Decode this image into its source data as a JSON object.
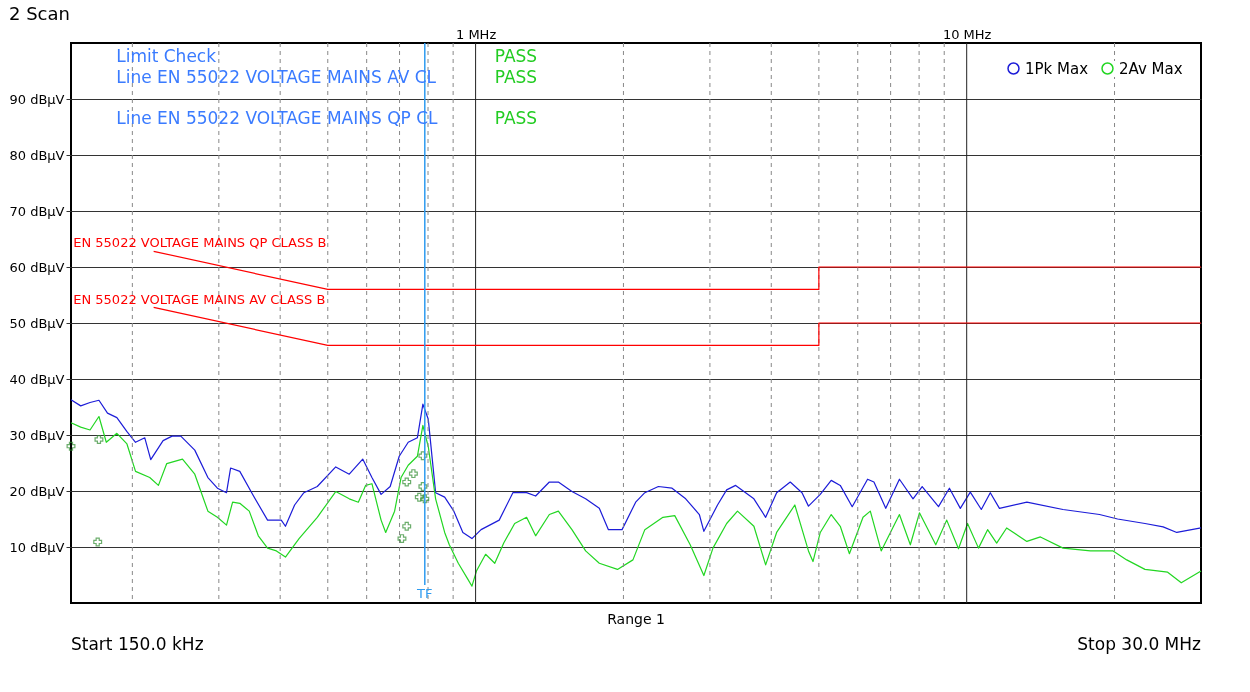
{
  "chart_data": {
    "type": "line",
    "title": "2 Scan",
    "xlim": [
      0.15,
      30
    ],
    "ylim": [
      0,
      100
    ],
    "log": "x",
    "grid": true,
    "legend": "top right",
    "line_style": "solid",
    "xticks": [
      {
        "value": 0.2,
        "label": null
      },
      {
        "value": 0.3,
        "label": null
      },
      {
        "value": 0.4,
        "label": null
      },
      {
        "value": 0.5,
        "label": null
      },
      {
        "value": 0.6,
        "label": null
      },
      {
        "value": 0.7,
        "label": null
      },
      {
        "value": 0.8,
        "label": null
      },
      {
        "value": 0.9,
        "label": null
      },
      {
        "value": 1,
        "label": "1 MHz"
      },
      {
        "value": 2,
        "label": null
      },
      {
        "value": 3,
        "label": null
      },
      {
        "value": 4,
        "label": null
      },
      {
        "value": 5,
        "label": null
      },
      {
        "value": 6,
        "label": null
      },
      {
        "value": 7,
        "label": null
      },
      {
        "value": 8,
        "label": null
      },
      {
        "value": 9,
        "label": null
      },
      {
        "value": 10,
        "label": "10 MHz"
      },
      {
        "value": 20,
        "label": null
      }
    ],
    "yticks": [
      {
        "value": 10,
        "label": "10 dBµV"
      },
      {
        "value": 20,
        "label": "20 dBµV"
      },
      {
        "value": 30,
        "label": "30 dBµV"
      },
      {
        "value": 40,
        "label": "40 dBµV"
      },
      {
        "value": 50,
        "label": "50 dBµV"
      },
      {
        "value": 60,
        "label": "60 dBµV"
      },
      {
        "value": 70,
        "label": "70 dBµV"
      },
      {
        "value": 80,
        "label": "80 dBµV"
      },
      {
        "value": 90,
        "label": "90 dBµV"
      }
    ],
    "series": [
      {
        "name": "1Pk Max",
        "color": "#1c1cd8",
        "x": [
          0.15,
          0.157,
          0.164,
          0.171,
          0.178,
          0.186,
          0.195,
          0.203,
          0.212,
          0.218,
          0.231,
          0.241,
          0.251,
          0.268,
          0.285,
          0.298,
          0.311,
          0.317,
          0.331,
          0.353,
          0.377,
          0.402,
          0.41,
          0.428,
          0.447,
          0.476,
          0.519,
          0.553,
          0.589,
          0.615,
          0.642,
          0.67,
          0.699,
          0.729,
          0.761,
          0.781,
          0.801,
          0.829,
          0.865,
          0.903,
          0.942,
          0.983,
          1.026,
          1.117,
          1.191,
          1.27,
          1.325,
          1.413,
          1.474,
          1.571,
          1.675,
          1.786,
          1.864,
          1.987,
          2.118,
          2.211,
          2.356,
          2.512,
          2.678,
          2.855,
          2.916,
          3.109,
          3.245,
          3.385,
          3.687,
          3.896,
          4.102,
          4.372,
          4.62,
          4.762,
          5.033,
          5.298,
          5.528,
          5.846,
          6.283,
          6.473,
          6.842,
          7.295,
          7.776,
          8.116,
          8.762,
          9.222,
          9.706,
          10.17,
          10.71,
          11.17,
          11.66,
          13.26,
          15.71,
          18.64,
          20.29,
          23.07,
          25.12,
          26.78,
          30.0
        ],
        "values": [
          36.3,
          35.2,
          35.8,
          36.2,
          33.9,
          33.1,
          30.6,
          28.7,
          29.5,
          25.6,
          29.0,
          29.8,
          29.8,
          27.3,
          22.4,
          20.5,
          19.7,
          24.1,
          23.5,
          19.1,
          14.8,
          14.8,
          13.7,
          17.5,
          19.7,
          20.8,
          24.3,
          23.0,
          25.7,
          22.4,
          19.4,
          20.8,
          26.2,
          28.7,
          29.5,
          35.5,
          32.8,
          19.7,
          18.9,
          16.4,
          12.6,
          11.5,
          13.1,
          14.8,
          19.7,
          19.7,
          19.1,
          21.6,
          21.6,
          19.9,
          18.6,
          16.9,
          13.1,
          13.1,
          18.0,
          19.7,
          20.8,
          20.5,
          18.6,
          15.8,
          12.8,
          17.5,
          20.2,
          21.0,
          18.6,
          15.3,
          19.7,
          21.6,
          19.7,
          17.3,
          19.4,
          21.9,
          21.0,
          17.2,
          22.1,
          21.6,
          16.9,
          22.1,
          18.6,
          20.8,
          17.2,
          20.5,
          16.9,
          19.8,
          16.7,
          19.7,
          16.9,
          18.0,
          16.7,
          15.8,
          15.0,
          14.2,
          13.6,
          12.6,
          13.4
        ]
      },
      {
        "name": "2Av Max",
        "color": "#22d622",
        "x": [
          0.15,
          0.157,
          0.164,
          0.171,
          0.177,
          0.186,
          0.195,
          0.203,
          0.217,
          0.226,
          0.235,
          0.253,
          0.268,
          0.285,
          0.298,
          0.311,
          0.32,
          0.331,
          0.346,
          0.361,
          0.377,
          0.393,
          0.41,
          0.437,
          0.476,
          0.519,
          0.553,
          0.577,
          0.597,
          0.615,
          0.642,
          0.656,
          0.684,
          0.705,
          0.729,
          0.761,
          0.781,
          0.801,
          0.829,
          0.865,
          0.884,
          0.922,
          0.962,
          0.983,
          1.004,
          1.048,
          1.094,
          1.141,
          1.201,
          1.27,
          1.325,
          1.413,
          1.474,
          1.571,
          1.675,
          1.786,
          1.945,
          2.091,
          2.211,
          2.407,
          2.544,
          2.735,
          2.916,
          3.043,
          3.245,
          3.414,
          3.687,
          3.896,
          4.102,
          4.467,
          4.762,
          4.864,
          5.033,
          5.298,
          5.528,
          5.77,
          6.15,
          6.364,
          6.697,
          7.295,
          7.678,
          8.013,
          8.65,
          9.105,
          9.623,
          10.04,
          10.57,
          11.03,
          11.51,
          12.06,
          13.26,
          14.13,
          15.71,
          17.86,
          19.87,
          21.18,
          23.07,
          25.66,
          27.35,
          30.0
        ],
        "values": [
          32.2,
          31.4,
          30.9,
          33.3,
          28.7,
          30.3,
          28.4,
          23.5,
          22.4,
          21.0,
          24.9,
          25.7,
          23.0,
          16.4,
          15.3,
          13.9,
          18.0,
          17.8,
          16.4,
          12.0,
          9.8,
          9.3,
          8.2,
          11.5,
          15.3,
          19.9,
          18.6,
          18.0,
          21.0,
          21.3,
          14.8,
          12.6,
          16.4,
          22.4,
          24.6,
          26.2,
          31.7,
          27.9,
          18.6,
          12.6,
          10.4,
          7.1,
          4.4,
          3.0,
          5.7,
          8.7,
          7.1,
          10.7,
          14.2,
          15.3,
          12.0,
          15.8,
          16.4,
          13.1,
          9.3,
          7.1,
          6.0,
          7.7,
          13.1,
          15.3,
          15.6,
          10.4,
          4.9,
          9.8,
          14.2,
          16.4,
          13.7,
          6.8,
          12.6,
          17.5,
          9.3,
          7.4,
          12.6,
          15.8,
          13.7,
          8.8,
          15.3,
          16.4,
          9.3,
          15.8,
          10.4,
          16.1,
          10.4,
          14.8,
          9.7,
          14.2,
          9.8,
          13.1,
          10.7,
          13.4,
          11.0,
          11.8,
          9.8,
          9.3,
          9.3,
          7.7,
          6.0,
          5.5,
          3.6,
          5.7
        ]
      },
      {
        "color": "#ff0000",
        "x": [
          0.221,
          0.5,
          5,
          5,
          30
        ],
        "values": [
          62.8,
          56,
          56,
          60,
          60
        ]
      },
      {
        "color": "#ff0000",
        "x": [
          0.221,
          0.5,
          5,
          5,
          30
        ],
        "values": [
          52.8,
          46,
          46,
          50,
          50
        ]
      },
      {
        "type": "scatter",
        "marker": "cross",
        "color": "#2e8b2e",
        "x": [
          0.15,
          0.171,
          0.724,
          0.747,
          0.781
        ],
        "values": [
          28.0,
          29.2,
          21.6,
          23.1,
          26.3
        ]
      },
      {
        "type": "scatter",
        "marker": "cross",
        "color": "#2e8b2e",
        "x": [
          0.17,
          0.708,
          0.724,
          0.768,
          0.781,
          0.788
        ],
        "values": [
          10.9,
          11.5,
          13.7,
          18.9,
          20.8,
          18.6
        ]
      }
    ],
    "ref_lines": [
      {
        "axis": "x",
        "value": 0.788,
        "label": "TF",
        "color": "#2e9bf0"
      }
    ],
    "annotations": [
      "Limit Check",
      "PASS",
      "Line EN 55022 VOLTAGE MAINS AV CL",
      "PASS",
      "Line EN 55022 VOLTAGE MAINS QP CL",
      "PASS",
      "Range 1",
      "Start 150.0 kHz",
      "Stop 30.0 MHz",
      "EN 55022 VOLTAGE MAINS QP CLASS B",
      "EN 55022 VOLTAGE MAINS AV CLASS B"
    ]
  }
}
